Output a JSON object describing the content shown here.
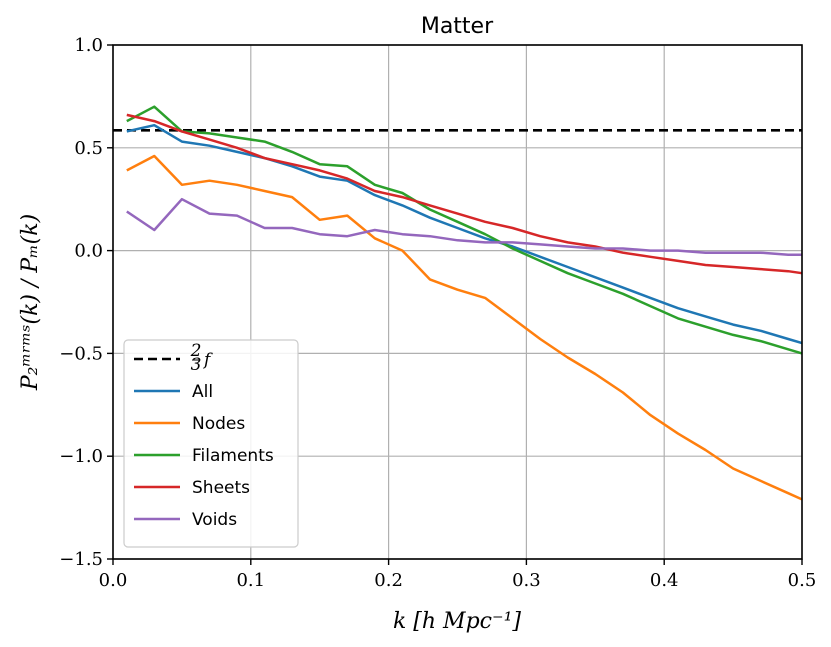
{
  "chart_data": {
    "type": "line",
    "title": "Matter",
    "xlabel": "k [h Mpc⁻¹]",
    "ylabel": "P₂ᵐʳᵐˢ(k) / Pₘ(k)",
    "xlim": [
      0.0,
      0.5
    ],
    "ylim": [
      -1.5,
      1.0
    ],
    "xticks": [
      0.0,
      0.1,
      0.2,
      0.3,
      0.4,
      0.5
    ],
    "xtick_labels": [
      "0.0",
      "0.1",
      "0.2",
      "0.3",
      "0.4",
      "0.5"
    ],
    "yticks": [
      -1.5,
      -1.0,
      -0.5,
      0.0,
      0.5,
      1.0
    ],
    "ytick_labels": [
      "−1.5",
      "−1.0",
      "−0.5",
      "0.0",
      "0.5",
      "1.0"
    ],
    "grid": true,
    "legend_position": "lower-left",
    "reference_line": {
      "name": "2/3 f",
      "label_num": "2",
      "label_den": "3",
      "label_var": "f",
      "value": 0.585,
      "color": "#000000",
      "style": "dashed"
    },
    "x": [
      0.01,
      0.03,
      0.05,
      0.07,
      0.09,
      0.11,
      0.13,
      0.15,
      0.17,
      0.19,
      0.21,
      0.23,
      0.25,
      0.27,
      0.29,
      0.31,
      0.33,
      0.35,
      0.37,
      0.39,
      0.41,
      0.43,
      0.45,
      0.47,
      0.49,
      0.5
    ],
    "series": [
      {
        "name": "All",
        "color": "#1f77b4",
        "values": [
          0.58,
          0.61,
          0.53,
          0.51,
          0.48,
          0.45,
          0.41,
          0.36,
          0.34,
          0.27,
          0.22,
          0.16,
          0.11,
          0.06,
          0.02,
          -0.03,
          -0.08,
          -0.13,
          -0.18,
          -0.23,
          -0.28,
          -0.32,
          -0.36,
          -0.39,
          -0.43,
          -0.45
        ]
      },
      {
        "name": "Nodes",
        "color": "#ff7f0e",
        "values": [
          0.39,
          0.46,
          0.32,
          0.34,
          0.32,
          0.29,
          0.26,
          0.15,
          0.17,
          0.06,
          0.0,
          -0.14,
          -0.19,
          -0.23,
          -0.33,
          -0.43,
          -0.52,
          -0.6,
          -0.69,
          -0.8,
          -0.89,
          -0.97,
          -1.06,
          -1.12,
          -1.18,
          -1.21
        ]
      },
      {
        "name": "Filaments",
        "color": "#2ca02c",
        "values": [
          0.63,
          0.7,
          0.58,
          0.57,
          0.55,
          0.53,
          0.48,
          0.42,
          0.41,
          0.32,
          0.28,
          0.2,
          0.14,
          0.08,
          0.01,
          -0.05,
          -0.11,
          -0.16,
          -0.21,
          -0.27,
          -0.33,
          -0.37,
          -0.41,
          -0.44,
          -0.48,
          -0.5
        ]
      },
      {
        "name": "Sheets",
        "color": "#d62728",
        "values": [
          0.66,
          0.63,
          0.58,
          0.54,
          0.5,
          0.45,
          0.42,
          0.39,
          0.35,
          0.29,
          0.26,
          0.22,
          0.18,
          0.14,
          0.11,
          0.07,
          0.04,
          0.02,
          -0.01,
          -0.03,
          -0.05,
          -0.07,
          -0.08,
          -0.09,
          -0.1,
          -0.11
        ]
      },
      {
        "name": "Voids",
        "color": "#9467bd",
        "values": [
          0.19,
          0.1,
          0.25,
          0.18,
          0.17,
          0.11,
          0.11,
          0.08,
          0.07,
          0.1,
          0.08,
          0.07,
          0.05,
          0.04,
          0.04,
          0.03,
          0.02,
          0.01,
          0.01,
          0.0,
          0.0,
          -0.01,
          -0.01,
          -0.01,
          -0.02,
          -0.02
        ]
      }
    ]
  }
}
